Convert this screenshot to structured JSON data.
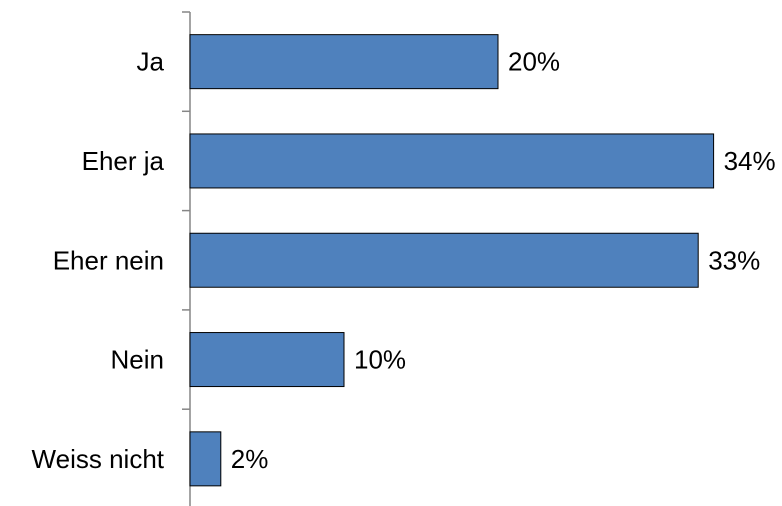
{
  "chart_data": {
    "type": "bar",
    "orientation": "horizontal",
    "categories": [
      "Ja",
      "Eher ja",
      "Eher nein",
      "Nein",
      "Weiss nicht"
    ],
    "values": [
      20,
      34,
      33,
      10,
      2
    ],
    "data_labels": [
      "20%",
      "34%",
      "33%",
      "10%",
      "2%"
    ],
    "unit": "%",
    "xlim": [
      0,
      40
    ],
    "grid": false,
    "legend": "none",
    "bar_color": "#4f81bd",
    "bar_edge_color": "#000000",
    "axis_color": "#868686"
  }
}
